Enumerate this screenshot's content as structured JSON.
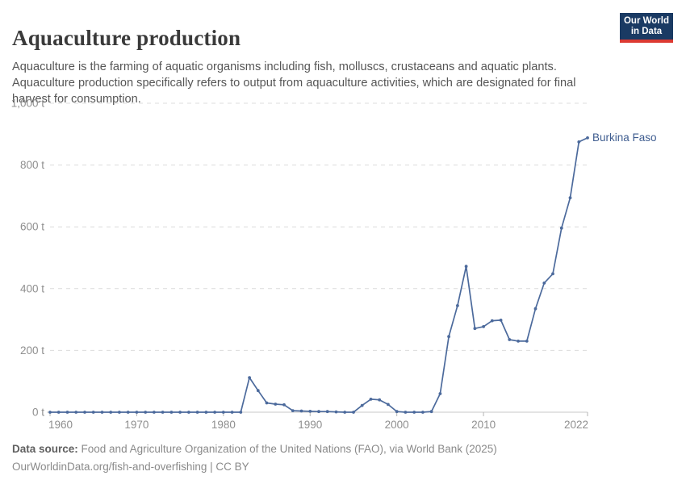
{
  "header": {
    "title": "Aquaculture production",
    "logo": {
      "line1": "Our World",
      "line2": "in Data"
    }
  },
  "subtitle": "Aquaculture is the farming of aquatic organisms including fish, molluscs, crustaceans and aquatic plants. Aquaculture production specifically refers to output from aquaculture activities, which are designated for final harvest for consumption.",
  "footer": {
    "source_label": "Data source:",
    "source_text": " Food and Agriculture Organization of the United Nations (FAO), via World Bank (2025)",
    "link_text": "OurWorldinData.org/fish-and-overfishing | CC BY"
  },
  "colors": {
    "line": "#4c6a9c",
    "entity_label": "#3e5c8f",
    "gridline": "#dcdcdc",
    "axis_line": "#c9c9c9",
    "tick_mark": "#b5b5b5",
    "logo_bg": "#1a3a63",
    "logo_bar": "#dc3a32"
  },
  "chart_data": {
    "type": "line",
    "title": "Aquaculture production",
    "entity_label": "Burkina Faso",
    "unit": "t",
    "xlim": [
      1960,
      2022
    ],
    "ylim": [
      0,
      1000
    ],
    "x_ticks": [
      1960,
      1970,
      1980,
      1990,
      2000,
      2010,
      2022
    ],
    "y_ticks": [
      0,
      200,
      400,
      600,
      800,
      1000
    ],
    "y_tick_labels": [
      "0 t",
      "200 t",
      "400 t",
      "600 t",
      "800 t",
      "1,000 t"
    ],
    "grid": "horizontal-dashed",
    "legend_position": "line-end-label",
    "series": [
      {
        "name": "Burkina Faso",
        "x": [
          1960,
          1961,
          1962,
          1963,
          1964,
          1965,
          1966,
          1967,
          1968,
          1969,
          1970,
          1971,
          1972,
          1973,
          1974,
          1975,
          1976,
          1977,
          1978,
          1979,
          1980,
          1981,
          1982,
          1983,
          1984,
          1985,
          1986,
          1987,
          1988,
          1989,
          1990,
          1991,
          1992,
          1993,
          1994,
          1995,
          1996,
          1997,
          1998,
          1999,
          2000,
          2001,
          2002,
          2003,
          2004,
          2005,
          2006,
          2007,
          2008,
          2009,
          2010,
          2011,
          2012,
          2013,
          2014,
          2015,
          2016,
          2017,
          2018,
          2019,
          2020,
          2021,
          2022
        ],
        "values": [
          0,
          0,
          0,
          0,
          0,
          0,
          0,
          0,
          0,
          0,
          0,
          0,
          0,
          0,
          0,
          0,
          0,
          0,
          0,
          0,
          0,
          0,
          0,
          112,
          70,
          30,
          26,
          24,
          5,
          4,
          3,
          2,
          2,
          1,
          0,
          0,
          22,
          42,
          40,
          25,
          2,
          0,
          0,
          0,
          2,
          60,
          245,
          345,
          472,
          271,
          277,
          296,
          298,
          235,
          230,
          230,
          335,
          418,
          448,
          596,
          694,
          875,
          888
        ]
      }
    ]
  }
}
